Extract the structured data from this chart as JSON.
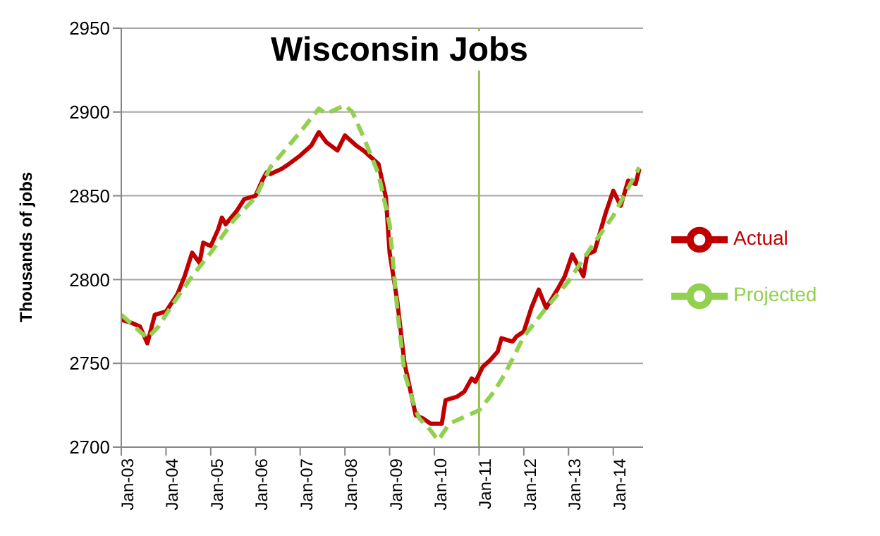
{
  "chart_data": {
    "type": "line",
    "title": "Wisconsin Jobs",
    "ylabel": "Thousands  of jobs",
    "xlim": [
      "2003-01",
      "2014-09"
    ],
    "ylim": [
      2700,
      2950
    ],
    "yticks": [
      2700,
      2750,
      2800,
      2850,
      2900,
      2950
    ],
    "xticks": [
      {
        "value": "2003-01",
        "label": "Jan-03"
      },
      {
        "value": "2004-01",
        "label": "Jan-04"
      },
      {
        "value": "2005-01",
        "label": "Jan-05"
      },
      {
        "value": "2006-01",
        "label": "Jan-06"
      },
      {
        "value": "2007-01",
        "label": "Jan-07"
      },
      {
        "value": "2008-01",
        "label": "Jan-08"
      },
      {
        "value": "2009-01",
        "label": "Jan-09"
      },
      {
        "value": "2010-01",
        "label": "Jan-10"
      },
      {
        "value": "2011-01",
        "label": "Jan-11"
      },
      {
        "value": "2012-01",
        "label": "Jan-12"
      },
      {
        "value": "2013-01",
        "label": "Jan-13"
      },
      {
        "value": "2014-01",
        "label": "Jan-14"
      }
    ],
    "grid": "y",
    "legend": "right",
    "marker": "none",
    "ref_lines": [
      {
        "axis": "x",
        "value": "2011-01",
        "color": "#9bbb59"
      }
    ],
    "series": [
      {
        "name": "Actual",
        "color": "#c00000",
        "line_style": "solid",
        "x": [
          "2003-01",
          "2003-04",
          "2003-06",
          "2003-08",
          "2003-10",
          "2004-01",
          "2004-04",
          "2004-06",
          "2004-08",
          "2004-10",
          "2004-11",
          "2005-01",
          "2005-03",
          "2005-04",
          "2005-05",
          "2005-08",
          "2005-10",
          "2006-01",
          "2006-03",
          "2006-04",
          "2006-05",
          "2006-08",
          "2006-10",
          "2007-01",
          "2007-03",
          "2007-04",
          "2007-06",
          "2007-08",
          "2007-11",
          "2008-01",
          "2008-04",
          "2008-06",
          "2008-08",
          "2008-10",
          "2008-12",
          "2009-01",
          "2009-03",
          "2009-05",
          "2009-08",
          "2009-10",
          "2009-12",
          "2010-03",
          "2010-04",
          "2010-07",
          "2010-09",
          "2010-11",
          "2010-12",
          "2011-02",
          "2011-04",
          "2011-06",
          "2011-07",
          "2011-10",
          "2011-11",
          "2012-01",
          "2012-03",
          "2012-05",
          "2012-07",
          "2012-10",
          "2012-12",
          "2013-02",
          "2013-05",
          "2013-06",
          "2013-08",
          "2013-11",
          "2014-01",
          "2014-03",
          "2014-05",
          "2014-07",
          "2014-08"
        ],
        "values": [
          2776,
          2774,
          2772,
          2762,
          2779,
          2781,
          2791,
          2802,
          2816,
          2810,
          2822,
          2820,
          2830,
          2837,
          2833,
          2841,
          2848,
          2850,
          2860,
          2864,
          2863,
          2866,
          2869,
          2874,
          2878,
          2880,
          2888,
          2882,
          2877,
          2886,
          2880,
          2877,
          2873,
          2869,
          2849,
          2816,
          2788,
          2750,
          2719,
          2717,
          2714,
          2714,
          2728,
          2730,
          2733,
          2741,
          2739,
          2748,
          2752,
          2757,
          2765,
          2763,
          2766,
          2769,
          2783,
          2794,
          2783,
          2794,
          2802,
          2815,
          2802,
          2815,
          2817,
          2840,
          2853,
          2844,
          2859,
          2857,
          2866
        ]
      },
      {
        "name": "Projected",
        "color": "#92d050",
        "line_style": "dashed",
        "x": [
          "2003-01",
          "2003-08",
          "2003-11",
          "2004-03",
          "2004-08",
          "2005-01",
          "2005-07",
          "2006-01",
          "2006-05",
          "2007-01",
          "2007-06",
          "2007-08",
          "2008-01",
          "2008-03",
          "2008-06",
          "2008-10",
          "2009-01",
          "2009-03",
          "2009-05",
          "2009-08",
          "2009-09",
          "2009-12",
          "2010-02",
          "2010-05",
          "2010-09",
          "2011-01",
          "2011-05",
          "2011-08",
          "2012-01",
          "2012-07",
          "2013-01",
          "2013-07",
          "2014-01",
          "2014-08"
        ],
        "values": [
          2779,
          2765,
          2772,
          2786,
          2802,
          2816,
          2835,
          2849,
          2867,
          2888,
          2902,
          2899,
          2904,
          2900,
          2885,
          2863,
          2833,
          2783,
          2744,
          2722,
          2717,
          2710,
          2704,
          2714,
          2718,
          2722,
          2733,
          2744,
          2766,
          2783,
          2799,
          2819,
          2838,
          2867
        ]
      }
    ]
  }
}
